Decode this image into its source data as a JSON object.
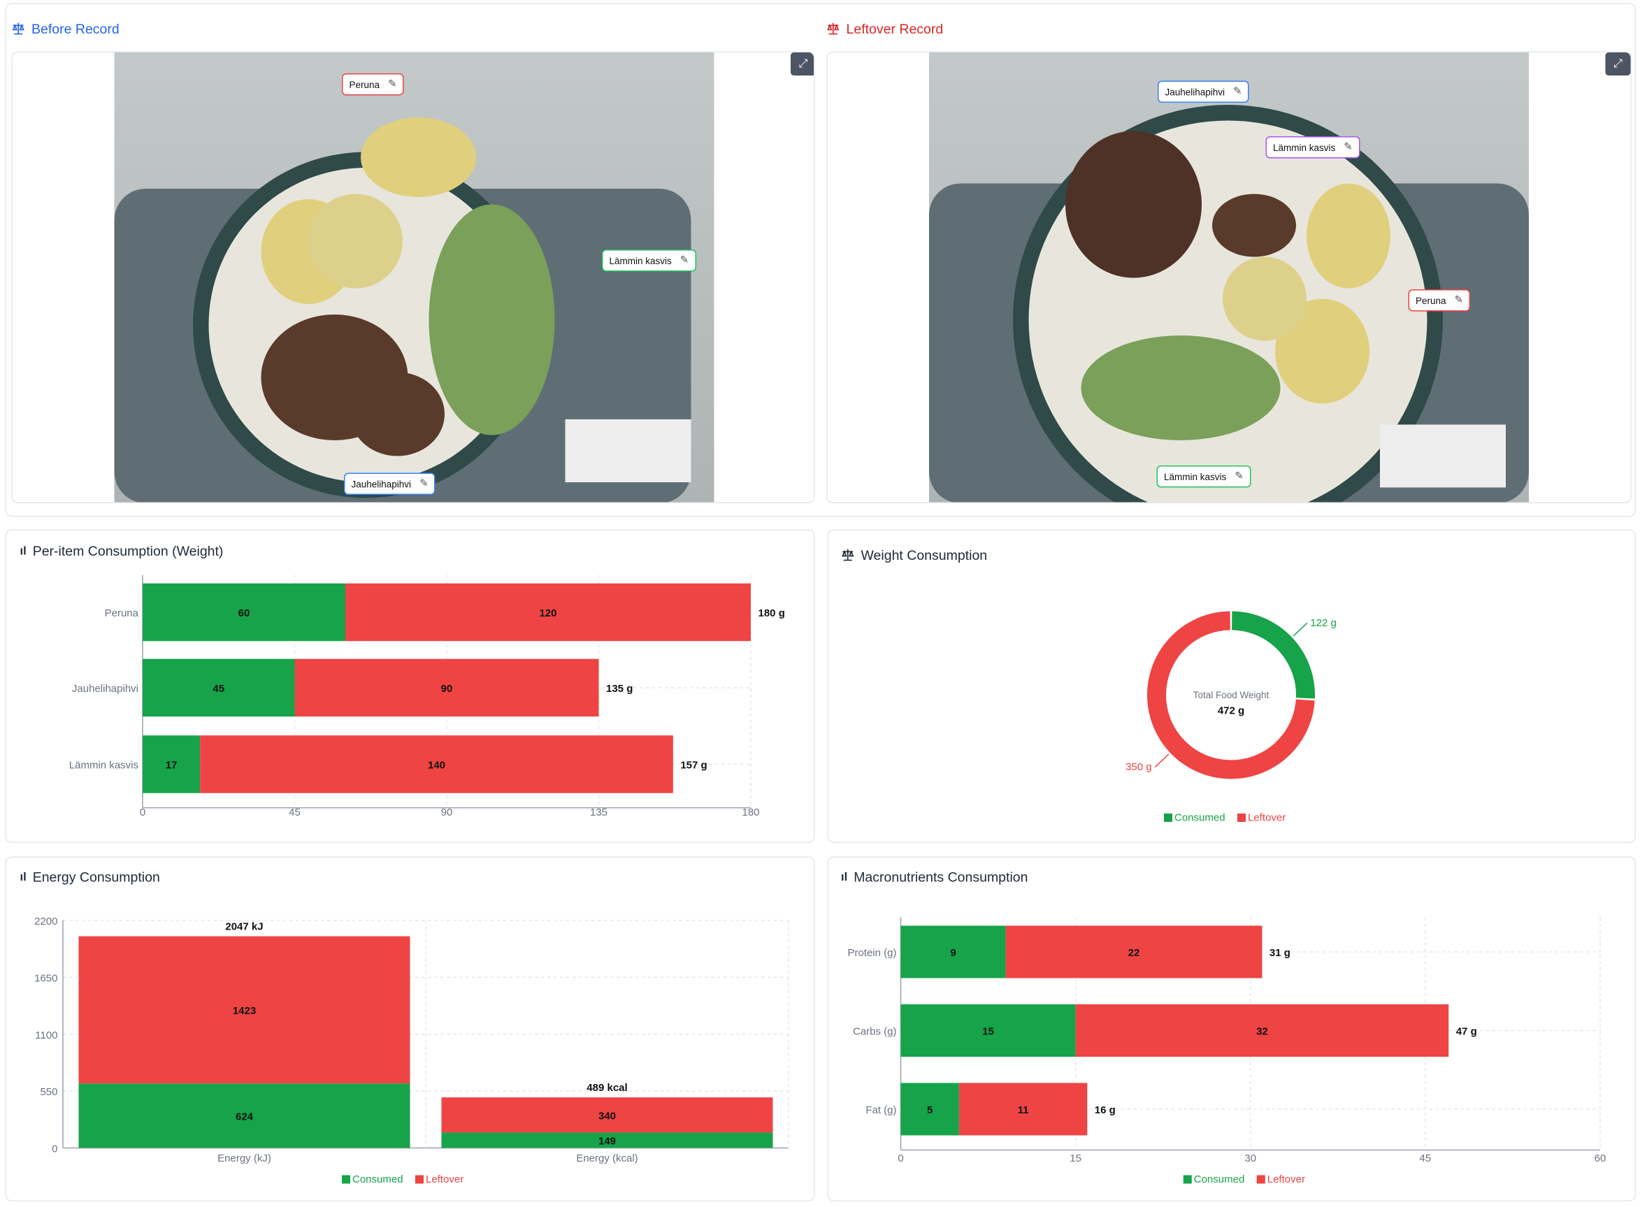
{
  "colors": {
    "consumed": "#16a34a",
    "leftover": "#ef4444",
    "before": "#2563eb",
    "leftover_title": "#dc2626"
  },
  "before": {
    "title": "Before Record",
    "icon": "scale-icon",
    "labels": [
      {
        "name": "Peruna",
        "color": "#ef4444"
      },
      {
        "name": "Lämmin kasvis",
        "color": "#22c55e"
      },
      {
        "name": "Jauhelihapihvi",
        "color": "#3b82f6"
      }
    ]
  },
  "leftover": {
    "title": "Leftover Record",
    "icon": "scale-icon",
    "labels": [
      {
        "name": "Jauhelihapihvi",
        "color": "#3b82f6"
      },
      {
        "name": "Lämmin kasvis",
        "color": "#a855f7"
      },
      {
        "name": "Peruna",
        "color": "#ef4444"
      },
      {
        "name": "Lämmin kasvis",
        "color": "#22c55e"
      }
    ]
  },
  "per_item": {
    "title": "Per-item Consumption (Weight)"
  },
  "weight": {
    "title": "Weight Consumption",
    "center_label": "Total Food Weight",
    "center_value": "472 g"
  },
  "energy": {
    "title": "Energy Consumption"
  },
  "macro": {
    "title": "Macronutrients Consumption"
  },
  "legend": {
    "consumed": "Consumed",
    "leftover": "Leftover"
  },
  "chart_data": [
    {
      "type": "bar",
      "orientation": "horizontal",
      "stacked": true,
      "categories": [
        "Peruna",
        "Jauhelihapihvi",
        "Lämmin kasvis"
      ],
      "series": [
        {
          "name": "Consumed",
          "values": [
            60,
            45,
            17
          ]
        },
        {
          "name": "Leftover",
          "values": [
            120,
            90,
            140
          ]
        }
      ],
      "totals": [
        "180 g",
        "135 g",
        "157 g"
      ],
      "xlim": [
        0,
        180
      ],
      "xticks": [
        0,
        45,
        90,
        135,
        180
      ],
      "grid": true
    },
    {
      "type": "pie",
      "donut": true,
      "series": [
        {
          "name": "Consumed",
          "value": 122,
          "label": "122 g"
        },
        {
          "name": "Leftover",
          "value": 350,
          "label": "350 g"
        }
      ],
      "legend": "bottom"
    },
    {
      "type": "bar",
      "stacked": true,
      "categories": [
        "Energy (kJ)",
        "Energy (kcal)"
      ],
      "series": [
        {
          "name": "Consumed",
          "values": [
            624,
            149
          ]
        },
        {
          "name": "Leftover",
          "values": [
            1423,
            340
          ]
        }
      ],
      "totals": [
        "2047 kJ",
        "489 kcal"
      ],
      "ylim": [
        0,
        2200
      ],
      "yticks": [
        0,
        550,
        1100,
        1650,
        2200
      ],
      "grid": true,
      "legend": "bottom"
    },
    {
      "type": "bar",
      "orientation": "horizontal",
      "stacked": true,
      "categories": [
        "Protein (g)",
        "Carbs (g)",
        "Fat (g)"
      ],
      "series": [
        {
          "name": "Consumed",
          "values": [
            9,
            15,
            5
          ]
        },
        {
          "name": "Leftover",
          "values": [
            22,
            32,
            11
          ]
        }
      ],
      "totals": [
        "31 g",
        "47 g",
        "16 g"
      ],
      "xlim": [
        0,
        60
      ],
      "xticks": [
        0,
        15,
        30,
        45,
        60
      ],
      "grid": true,
      "legend": "bottom"
    }
  ]
}
